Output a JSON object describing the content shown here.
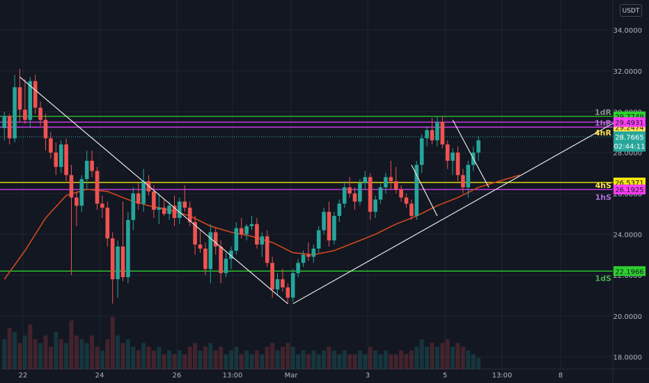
{
  "currency_label": "USDT",
  "colors": {
    "background": "#131722",
    "grid": "#1f2433",
    "up": "#26a69a",
    "down": "#ef5350",
    "ma": "#d4481e",
    "trendline": "#e8e8e8",
    "green_level": "#2ed12e",
    "magenta_level": "#e040fb",
    "yellow_level": "#f5e50c",
    "price_tag": "#26a69a"
  },
  "chart_data": {
    "type": "candlestick",
    "x_tick_labels": [
      "22",
      "24",
      "26",
      "13:00",
      "Mar",
      "3",
      "5",
      "13:00",
      "8"
    ],
    "y_tick_labels": [
      "18.0000",
      "20.0000",
      "22.0000",
      "24.0000",
      "26.0000",
      "28.0000",
      "30.0000",
      "32.0000",
      "34.0000"
    ],
    "y_range": [
      17.4,
      35.2
    ],
    "candles": [
      [
        29.2,
        30.0,
        28.6,
        29.8
      ],
      [
        29.8,
        29.9,
        28.4,
        28.7
      ],
      [
        28.7,
        31.8,
        28.5,
        31.2
      ],
      [
        31.2,
        32.1,
        29.5,
        30.1
      ],
      [
        30.1,
        31.6,
        29.4,
        29.6
      ],
      [
        29.6,
        31.7,
        29.2,
        31.5
      ],
      [
        31.5,
        31.8,
        29.9,
        30.2
      ],
      [
        30.2,
        30.5,
        29.3,
        29.6
      ],
      [
        29.6,
        29.9,
        28.1,
        28.7
      ],
      [
        28.7,
        29.0,
        27.7,
        28.0
      ],
      [
        28.0,
        28.5,
        26.9,
        27.3
      ],
      [
        27.3,
        28.6,
        27.0,
        28.4
      ],
      [
        28.4,
        28.7,
        26.6,
        26.9
      ],
      [
        26.9,
        27.4,
        22.0,
        25.8
      ],
      [
        25.8,
        26.1,
        24.4,
        25.4
      ],
      [
        25.4,
        26.9,
        25.1,
        26.7
      ],
      [
        26.7,
        28.1,
        26.2,
        27.6
      ],
      [
        27.6,
        28.1,
        26.8,
        27.1
      ],
      [
        27.1,
        27.3,
        25.2,
        25.5
      ],
      [
        25.5,
        25.9,
        24.8,
        25.3
      ],
      [
        25.3,
        25.6,
        23.4,
        23.8
      ],
      [
        23.8,
        24.1,
        20.6,
        21.8
      ],
      [
        21.8,
        23.7,
        20.9,
        23.4
      ],
      [
        23.4,
        25.6,
        21.7,
        21.9
      ],
      [
        21.9,
        25.1,
        21.6,
        24.7
      ],
      [
        24.7,
        26.3,
        24.2,
        26.0
      ],
      [
        26.0,
        26.5,
        25.2,
        25.5
      ],
      [
        25.5,
        27.2,
        25.1,
        26.6
      ],
      [
        26.6,
        26.9,
        25.9,
        26.1
      ],
      [
        26.1,
        26.4,
        24.8,
        25.2
      ],
      [
        25.2,
        26.0,
        24.5,
        25.3
      ],
      [
        25.3,
        25.7,
        24.9,
        25.0
      ],
      [
        25.0,
        25.6,
        24.7,
        25.4
      ],
      [
        25.4,
        25.9,
        24.4,
        24.8
      ],
      [
        24.8,
        25.8,
        24.5,
        25.6
      ],
      [
        25.6,
        26.4,
        25.1,
        25.3
      ],
      [
        25.3,
        25.6,
        24.4,
        24.6
      ],
      [
        24.6,
        24.9,
        23.0,
        23.5
      ],
      [
        23.5,
        24.2,
        23.1,
        23.3
      ],
      [
        23.3,
        23.6,
        22.0,
        22.3
      ],
      [
        22.3,
        24.5,
        21.6,
        24.1
      ],
      [
        24.1,
        24.3,
        23.0,
        23.4
      ],
      [
        23.4,
        23.7,
        21.6,
        22.1
      ],
      [
        22.1,
        23.1,
        21.9,
        22.8
      ],
      [
        22.8,
        23.4,
        22.3,
        23.2
      ],
      [
        23.2,
        24.6,
        23.0,
        24.3
      ],
      [
        24.3,
        24.8,
        23.8,
        24.0
      ],
      [
        24.0,
        24.5,
        23.7,
        24.4
      ],
      [
        24.4,
        24.9,
        24.2,
        24.5
      ],
      [
        24.5,
        24.8,
        23.3,
        23.5
      ],
      [
        23.5,
        24.1,
        22.9,
        23.9
      ],
      [
        23.9,
        24.2,
        22.4,
        22.6
      ],
      [
        22.6,
        22.9,
        20.9,
        21.3
      ],
      [
        21.3,
        22.1,
        21.0,
        21.8
      ],
      [
        21.8,
        22.3,
        21.2,
        21.4
      ],
      [
        21.4,
        21.6,
        20.6,
        20.9
      ],
      [
        20.9,
        22.3,
        20.7,
        22.1
      ],
      [
        22.1,
        22.8,
        21.9,
        22.6
      ],
      [
        22.6,
        23.2,
        22.4,
        23.0
      ],
      [
        23.0,
        23.6,
        22.7,
        22.9
      ],
      [
        22.9,
        23.5,
        22.6,
        23.3
      ],
      [
        23.3,
        24.4,
        23.1,
        24.2
      ],
      [
        24.2,
        25.3,
        24.0,
        25.1
      ],
      [
        25.1,
        25.6,
        23.4,
        23.7
      ],
      [
        23.7,
        25.1,
        23.5,
        24.9
      ],
      [
        24.9,
        25.7,
        24.6,
        25.5
      ],
      [
        25.5,
        26.6,
        25.3,
        26.3
      ],
      [
        26.3,
        26.8,
        25.8,
        26.0
      ],
      [
        26.0,
        26.3,
        25.2,
        25.6
      ],
      [
        25.6,
        26.7,
        25.4,
        26.5
      ],
      [
        26.5,
        27.1,
        26.2,
        26.8
      ],
      [
        26.8,
        27.0,
        24.7,
        25.1
      ],
      [
        25.1,
        25.9,
        24.8,
        25.7
      ],
      [
        25.7,
        26.5,
        25.5,
        26.3
      ],
      [
        26.3,
        27.0,
        26.0,
        26.8
      ],
      [
        26.8,
        27.6,
        26.2,
        26.6
      ],
      [
        26.6,
        27.3,
        26.0,
        26.2
      ],
      [
        26.2,
        26.4,
        25.6,
        25.8
      ],
      [
        25.8,
        26.0,
        25.3,
        25.5
      ],
      [
        25.5,
        25.7,
        24.7,
        24.9
      ],
      [
        24.9,
        27.6,
        24.7,
        27.4
      ],
      [
        27.4,
        28.9,
        27.0,
        28.7
      ],
      [
        28.7,
        29.3,
        28.3,
        29.1
      ],
      [
        29.1,
        29.7,
        28.4,
        28.6
      ],
      [
        28.6,
        29.8,
        28.3,
        29.5
      ],
      [
        29.5,
        29.8,
        28.2,
        28.4
      ],
      [
        28.4,
        28.6,
        27.2,
        27.6
      ],
      [
        27.6,
        28.2,
        26.9,
        28.0
      ],
      [
        28.0,
        28.3,
        26.6,
        26.9
      ],
      [
        26.9,
        27.2,
        26.0,
        26.3
      ],
      [
        26.3,
        27.6,
        25.8,
        27.4
      ],
      [
        27.4,
        28.3,
        27.1,
        28.0
      ],
      [
        28.0,
        28.8,
        27.6,
        28.6
      ]
    ],
    "moving_average": [
      [
        0,
        21.8
      ],
      [
        4,
        23.2
      ],
      [
        8,
        24.8
      ],
      [
        12,
        25.9
      ],
      [
        16,
        26.2
      ],
      [
        20,
        26.1
      ],
      [
        24,
        25.7
      ],
      [
        28,
        25.4
      ],
      [
        32,
        25.2
      ],
      [
        36,
        24.9
      ],
      [
        40,
        24.4
      ],
      [
        44,
        24.1
      ],
      [
        48,
        23.9
      ],
      [
        52,
        23.6
      ],
      [
        56,
        23.1
      ],
      [
        60,
        23.0
      ],
      [
        64,
        23.2
      ],
      [
        68,
        23.6
      ],
      [
        72,
        24.0
      ],
      [
        76,
        24.5
      ],
      [
        80,
        24.9
      ],
      [
        84,
        25.4
      ],
      [
        88,
        25.8
      ],
      [
        92,
        26.3
      ],
      [
        96,
        26.6
      ],
      [
        100,
        26.9
      ]
    ],
    "trendlines": [
      {
        "x1": 3,
        "y1": 31.7,
        "x2": 55,
        "y2": 20.6
      },
      {
        "x1": 56,
        "y1": 20.6,
        "x2": 120,
        "y2": 29.7
      },
      {
        "x1": 79,
        "y1": 27.4,
        "x2": 84,
        "y2": 24.9
      },
      {
        "x1": 87,
        "y1": 29.6,
        "x2": 94,
        "y2": 26.3
      }
    ],
    "levels": [
      {
        "name": "1dR",
        "value": 29.7749,
        "price_label": "29.7749",
        "color_key": "green_level"
      },
      {
        "name": "1hR",
        "value": 29.4931,
        "price_label": "29.4931",
        "color_key": "magenta_level"
      },
      {
        "name": "4hR",
        "value": 29.2474,
        "price_label": "29.2474",
        "color_key": "magenta_level"
      },
      {
        "name": "4hS",
        "value": 26.5371,
        "price_label": "26.5371",
        "color_key": "yellow_level"
      },
      {
        "name": "1hS",
        "value": 26.1925,
        "price_label": "26.1925",
        "color_key": "magenta_level"
      },
      {
        "name": "1dS",
        "value": 22.1966,
        "price_label": "22.1966",
        "color_key": "green_level"
      }
    ],
    "current_price": {
      "value": 28.7665,
      "label": "28.7665",
      "countdown": "02:44:11"
    },
    "volume": [
      [
        8,
        1
      ],
      [
        11,
        0
      ],
      [
        10,
        1
      ],
      [
        7,
        0
      ],
      [
        9,
        1
      ],
      [
        12,
        0
      ],
      [
        8,
        0
      ],
      [
        7,
        1
      ],
      [
        9,
        0
      ],
      [
        6,
        0
      ],
      [
        10,
        1
      ],
      [
        8,
        0
      ],
      [
        7,
        1
      ],
      [
        13,
        0
      ],
      [
        9,
        0
      ],
      [
        8,
        1
      ],
      [
        7,
        1
      ],
      [
        9,
        0
      ],
      [
        6,
        0
      ],
      [
        5,
        1
      ],
      [
        8,
        0
      ],
      [
        14,
        0
      ],
      [
        9,
        1
      ],
      [
        7,
        0
      ],
      [
        8,
        1
      ],
      [
        6,
        1
      ],
      [
        5,
        0
      ],
      [
        7,
        1
      ],
      [
        6,
        0
      ],
      [
        5,
        0
      ],
      [
        6,
        1
      ],
      [
        4,
        0
      ],
      [
        5,
        1
      ],
      [
        4,
        0
      ],
      [
        5,
        1
      ],
      [
        4,
        0
      ],
      [
        6,
        0
      ],
      [
        7,
        0
      ],
      [
        5,
        1
      ],
      [
        6,
        0
      ],
      [
        7,
        1
      ],
      [
        5,
        0
      ],
      [
        6,
        0
      ],
      [
        4,
        1
      ],
      [
        5,
        1
      ],
      [
        6,
        1
      ],
      [
        4,
        0
      ],
      [
        5,
        1
      ],
      [
        4,
        1
      ],
      [
        5,
        0
      ],
      [
        4,
        1
      ],
      [
        6,
        0
      ],
      [
        7,
        0
      ],
      [
        5,
        1
      ],
      [
        6,
        0
      ],
      [
        7,
        0
      ],
      [
        6,
        1
      ],
      [
        4,
        1
      ],
      [
        5,
        1
      ],
      [
        4,
        0
      ],
      [
        5,
        1
      ],
      [
        4,
        1
      ],
      [
        5,
        1
      ],
      [
        6,
        0
      ],
      [
        5,
        1
      ],
      [
        4,
        1
      ],
      [
        5,
        1
      ],
      [
        4,
        0
      ],
      [
        4,
        0
      ],
      [
        5,
        1
      ],
      [
        4,
        1
      ],
      [
        6,
        0
      ],
      [
        5,
        1
      ],
      [
        4,
        1
      ],
      [
        5,
        1
      ],
      [
        4,
        0
      ],
      [
        4,
        0
      ],
      [
        5,
        0
      ],
      [
        4,
        0
      ],
      [
        5,
        0
      ],
      [
        6,
        1
      ],
      [
        8,
        1
      ],
      [
        6,
        1
      ],
      [
        7,
        0
      ],
      [
        6,
        1
      ],
      [
        7,
        0
      ],
      [
        8,
        0
      ],
      [
        6,
        1
      ],
      [
        7,
        0
      ],
      [
        6,
        0
      ],
      [
        5,
        1
      ],
      [
        4,
        1
      ],
      [
        3,
        1
      ]
    ]
  }
}
